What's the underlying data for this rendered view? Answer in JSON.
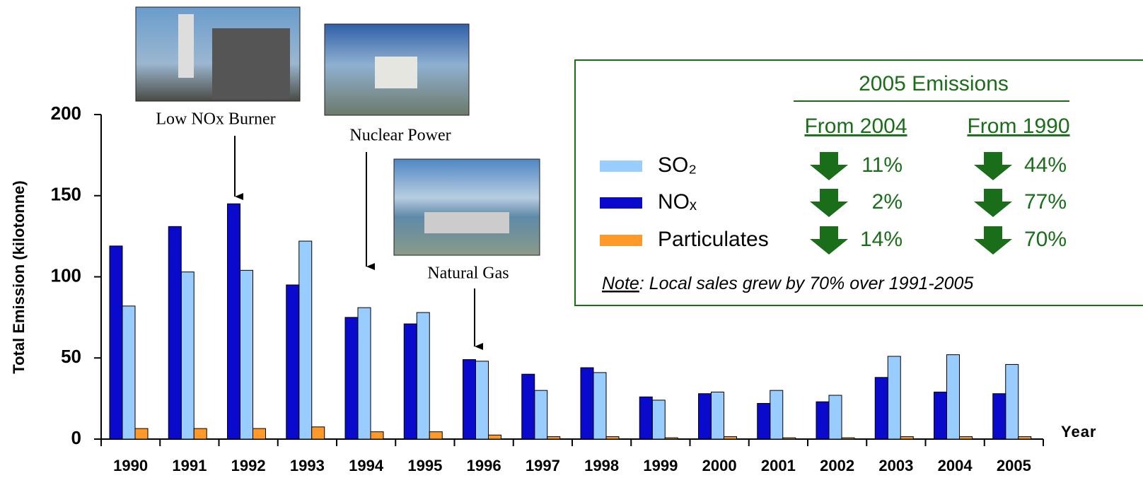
{
  "chart_data": {
    "type": "bar",
    "y_label": "Total Emission (kilotonne)",
    "x_label": "Year",
    "categories": [
      "1990",
      "1991",
      "1992",
      "1993",
      "1994",
      "1995",
      "1996",
      "1997",
      "1998",
      "1999",
      "2000",
      "2001",
      "2002",
      "2003",
      "2004",
      "2005"
    ],
    "series": [
      {
        "name": "SO₂",
        "color": "#99ccff",
        "values": [
          82,
          103,
          104,
          122,
          81,
          78,
          48,
          30,
          41,
          24,
          29,
          30,
          27,
          51,
          52,
          46
        ]
      },
      {
        "name": "NOₓ",
        "color": "#0a0acc",
        "values": [
          119,
          131,
          145,
          95,
          75,
          71,
          49,
          40,
          44,
          26,
          28,
          22,
          23,
          38,
          29,
          28
        ]
      },
      {
        "name": "Particulates",
        "color": "#ff9a2a",
        "values": [
          6.5,
          6.5,
          6.5,
          7.5,
          4.5,
          4.5,
          2.5,
          1.5,
          1.5,
          0.8,
          1.5,
          0.8,
          0.8,
          1.5,
          1.5,
          1.5
        ]
      }
    ],
    "ylim": [
      0,
      200
    ],
    "yticks": [
      0,
      50,
      100,
      150,
      200
    ],
    "annotations": [
      "Low NOx Burner",
      "Nuclear Power",
      "Natural Gas"
    ],
    "summary": {
      "title": "2005 Emissions",
      "columns": [
        "From 2004",
        "From 1990"
      ],
      "rows": [
        [
          "11%",
          "44%"
        ],
        [
          "2%",
          "77%"
        ],
        [
          "14%",
          "70%"
        ]
      ],
      "note_label": "Note",
      "note": ": Local sales grew by 70% over 1991-2005"
    }
  }
}
